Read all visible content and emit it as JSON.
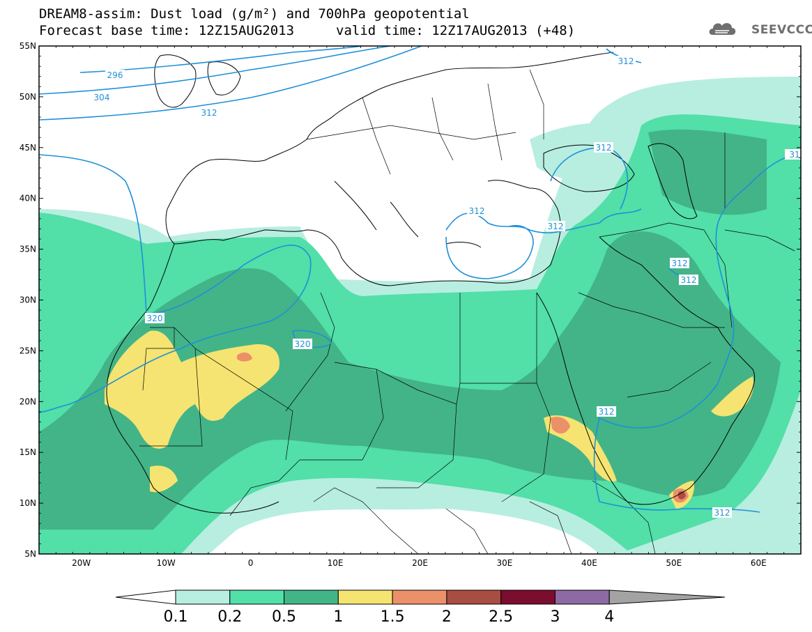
{
  "title": {
    "line1": "DREAM8-assim: Dust load (g/m²) and 700hPa geopotential",
    "line2_left": "Forecast base time: 12Z15AUG2013",
    "line2_right": "valid time: 12Z17AUG2013 (+48)"
  },
  "logo": {
    "text": "SEEVCCC",
    "icon": "cloud-logo-icon"
  },
  "map": {
    "lon_range": [
      -25,
      65
    ],
    "lat_range": [
      5,
      55
    ],
    "lat_labels": [
      "55N",
      "50N",
      "45N",
      "40N",
      "35N",
      "30N",
      "25N",
      "20N",
      "15N",
      "10N",
      "5N"
    ],
    "lon_labels": [
      "20W",
      "10W",
      "0",
      "10E",
      "20E",
      "30E",
      "40E",
      "50E",
      "60E"
    ],
    "contour_labels": [
      "296",
      "304",
      "312",
      "312",
      "312",
      "312",
      "312",
      "312",
      "312",
      "312",
      "312",
      "320",
      "320",
      "312",
      "31"
    ]
  },
  "colorbar": {
    "colors": [
      "#b7eee0",
      "#52dfa8",
      "#43b487",
      "#f5e471",
      "#ec906a",
      "#a84d42",
      "#7b0d2e",
      "#8d6aa3",
      "#a3a3a3"
    ],
    "labels": [
      "0.1",
      "0.2",
      "0.5",
      "1",
      "1.5",
      "2",
      "2.5",
      "3",
      "4"
    ]
  }
}
